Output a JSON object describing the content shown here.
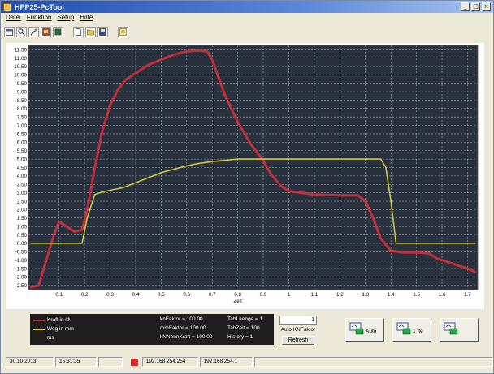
{
  "window": {
    "title": "HPP25-PcTool"
  },
  "menu": {
    "items": [
      "Datei",
      "Funktion",
      "Setup",
      "Hilfe"
    ]
  },
  "toolbar": {
    "icons": [
      "calendar-icon",
      "search-icon",
      "tools-icon",
      "image-icon",
      "cube-icon",
      "new-file-icon",
      "open-folder-icon",
      "save-icon",
      "note-icon"
    ]
  },
  "chart_data": {
    "type": "line",
    "xlabel": "Zeit",
    "ylabel": "",
    "xlim": [
      -0.02,
      1.74
    ],
    "ylim": [
      -2.75,
      11.75
    ],
    "x_ticks": [
      0.1,
      0.2,
      0.3,
      0.4,
      0.5,
      0.6,
      0.7,
      0.8,
      0.9,
      1,
      1.1,
      1.2,
      1.3,
      1.4,
      1.5,
      1.6,
      1.7
    ],
    "y_ticks": [
      11.5,
      11,
      10.5,
      10,
      9.5,
      9,
      8.5,
      8,
      7.5,
      7,
      6.5,
      6,
      5.5,
      5,
      4.5,
      4,
      3.5,
      3,
      2.5,
      2,
      1.5,
      1,
      0.5,
      0,
      -0.5,
      -1,
      -1.5,
      -2,
      -2.5
    ],
    "x_tick_labels": [
      "0.1",
      "0.2",
      "0.3",
      "0.4",
      "0.5",
      "0.6",
      "0.7",
      "0.8",
      "0.9",
      "1",
      "1.1",
      "1.2",
      "1.3",
      "1.4",
      "1.5",
      "1.6",
      "1.7"
    ],
    "y_tick_labels": [
      "11.50",
      "11.00",
      "10.50",
      "10.00",
      "9.50",
      "9.00",
      "8.50",
      "8.00",
      "7.50",
      "7.00",
      "6.50",
      "6.00",
      "5.50",
      "5.00",
      "4.50",
      "4.00",
      "3.50",
      "3.00",
      "2.50",
      "2.00",
      "1.50",
      "1.00",
      "0.50",
      "0.00",
      "-0.50",
      "-1.00",
      "-1.50",
      "-2.00",
      "-2.50"
    ],
    "grid": true,
    "series": [
      {
        "name": "Kraft in kN",
        "color": "#c8323c",
        "x": [
          -0.01,
          0.02,
          0.05,
          0.08,
          0.1,
          0.13,
          0.16,
          0.19,
          0.21,
          0.24,
          0.27,
          0.3,
          0.33,
          0.36,
          0.4,
          0.45,
          0.5,
          0.55,
          0.6,
          0.65,
          0.68,
          0.7,
          0.75,
          0.8,
          0.85,
          0.9,
          0.93,
          0.97,
          1.0,
          1.1,
          1.2,
          1.27,
          1.3,
          1.33,
          1.36,
          1.4,
          1.45,
          1.5,
          1.55,
          1.58,
          1.62,
          1.66,
          1.7,
          1.73
        ],
        "y": [
          -2.6,
          -2.5,
          -1.0,
          0.5,
          1.3,
          1.0,
          0.7,
          0.8,
          2.0,
          4.5,
          6.7,
          8.2,
          9.1,
          9.7,
          10.1,
          10.6,
          10.9,
          11.2,
          11.4,
          11.45,
          11.4,
          10.9,
          8.8,
          7.2,
          5.9,
          4.9,
          4.1,
          3.4,
          3.1,
          2.9,
          2.85,
          2.85,
          2.5,
          1.5,
          0.3,
          -0.45,
          -0.55,
          -0.55,
          -0.6,
          -0.9,
          -1.1,
          -1.3,
          -1.5,
          -1.7
        ]
      },
      {
        "name": "Weg in mm",
        "color": "#d8d03c",
        "x": [
          -0.01,
          0.19,
          0.21,
          0.24,
          0.27,
          0.3,
          0.35,
          0.4,
          0.45,
          0.5,
          0.55,
          0.6,
          0.65,
          0.7,
          0.8,
          0.9,
          1.0,
          1.2,
          1.3,
          1.36,
          1.38,
          1.4,
          1.42,
          1.5,
          1.6,
          1.73
        ],
        "y": [
          0.0,
          0.0,
          1.5,
          2.9,
          3.05,
          3.15,
          3.3,
          3.6,
          3.9,
          4.2,
          4.4,
          4.6,
          4.75,
          4.85,
          5.0,
          5.0,
          5.0,
          5.0,
          5.0,
          5.0,
          4.5,
          2.5,
          0.0,
          0.0,
          0.0,
          0.0
        ]
      }
    ]
  },
  "legend": {
    "rows": [
      {
        "label": "Kraft in kN",
        "color": "#c8323c"
      },
      {
        "label": "Weg in mm",
        "color": "#d8d03c"
      },
      {
        "label": "ms",
        "color": ""
      }
    ],
    "meta_left": [
      "knFaktor = 100.00",
      "mmFaktor = 100.00",
      "kNNennKraft = 100.00"
    ],
    "meta_right": [
      "TabLaenge = 1",
      "TabZeit = 100",
      "History = 1"
    ]
  },
  "controls": {
    "number_value": "1",
    "auto_kn_label": "Auto KNFaktor",
    "refresh_label": "Refresh",
    "btn_auto_label": "Auto",
    "btn_single_label": "1 .te",
    "btn_third_label": ""
  },
  "status": {
    "date": "30.10.2013",
    "time": "15:31:35",
    "ip_local": "192.168.254.254",
    "ip_remote": "192.168.254.1"
  }
}
